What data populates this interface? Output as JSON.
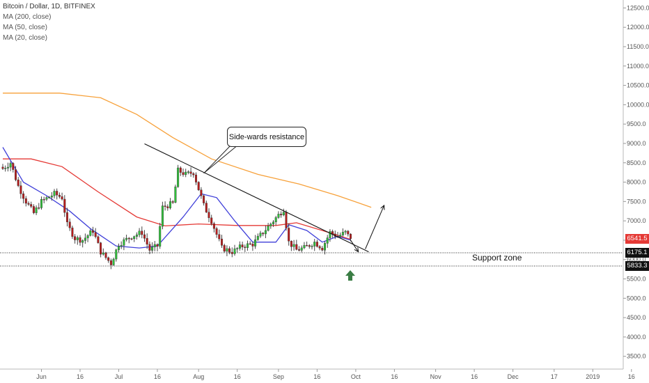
{
  "legend": {
    "symbol": "Bitcoin / Dollar, 1D, BITFINEX",
    "ma200": "MA (200, close)",
    "ma50": "MA (50, close)",
    "ma20": "MA (20, close)"
  },
  "annotations": {
    "callout": "Side-wards resistance",
    "support_zone": "Support zone"
  },
  "price_tags": {
    "last": "6541.5",
    "support_top": "6175.1",
    "support_bottom": "5833.3"
  },
  "colors": {
    "up": "#2fbf3a",
    "down": "#b71c1c",
    "ma200": "#f7a13a",
    "ma50": "#e53935",
    "ma20": "#3f3fd9",
    "last_tag": "#e53935",
    "support_tag": "#111111",
    "arrow": "#3a7d44"
  },
  "chart_data": {
    "type": "candlestick",
    "ylim": [
      3300,
      12500
    ],
    "y_ticks": [
      3500,
      4000,
      4500,
      5000,
      5500,
      6000,
      6500,
      7000,
      7500,
      8000,
      8500,
      9000,
      9500,
      10000,
      10500,
      11000,
      11500,
      12000,
      12500
    ],
    "y_tick_labels": [
      "3500.0",
      "4000.0",
      "4500.0",
      "5000.0",
      "5500.0",
      "6000.0",
      "6500.0",
      "7000.0",
      "7500.0",
      "8000.0",
      "8500.0",
      "9000.0",
      "9500.0",
      "10000.0",
      "10500.0",
      "11000.0",
      "11500.0",
      "12000.0",
      "12500.0"
    ],
    "x_start": "2018-05-17",
    "x_ticks": [
      {
        "date": "2018-06-01",
        "label": "Jun"
      },
      {
        "date": "2018-06-16",
        "label": "16"
      },
      {
        "date": "2018-07-01",
        "label": "Jul"
      },
      {
        "date": "2018-07-16",
        "label": "16"
      },
      {
        "date": "2018-08-01",
        "label": "Aug"
      },
      {
        "date": "2018-08-16",
        "label": "16"
      },
      {
        "date": "2018-09-01",
        "label": "Sep"
      },
      {
        "date": "2018-09-16",
        "label": "16"
      },
      {
        "date": "2018-10-01",
        "label": "Oct"
      },
      {
        "date": "2018-10-16",
        "label": "16"
      },
      {
        "date": "2018-11-01",
        "label": "Nov"
      },
      {
        "date": "2018-11-16",
        "label": "16"
      },
      {
        "date": "2018-12-01",
        "label": "Dec"
      },
      {
        "date": "2018-12-17",
        "label": "17"
      },
      {
        "date": "2019-01-01",
        "label": "2019"
      },
      {
        "date": "2019-01-16",
        "label": "16"
      }
    ],
    "price_anchors": [
      {
        "date": "2018-05-17",
        "close": 8350
      },
      {
        "date": "2018-05-20",
        "close": 8500
      },
      {
        "date": "2018-05-23",
        "close": 7900
      },
      {
        "date": "2018-05-26",
        "close": 7500
      },
      {
        "date": "2018-05-29",
        "close": 7200
      },
      {
        "date": "2018-06-01",
        "close": 7500
      },
      {
        "date": "2018-06-06",
        "close": 7700
      },
      {
        "date": "2018-06-09",
        "close": 7600
      },
      {
        "date": "2018-06-11",
        "close": 6900
      },
      {
        "date": "2018-06-14",
        "close": 6550
      },
      {
        "date": "2018-06-17",
        "close": 6500
      },
      {
        "date": "2018-06-21",
        "close": 6750
      },
      {
        "date": "2018-06-24",
        "close": 6200
      },
      {
        "date": "2018-06-28",
        "close": 5900
      },
      {
        "date": "2018-07-01",
        "close": 6400
      },
      {
        "date": "2018-07-06",
        "close": 6600
      },
      {
        "date": "2018-07-10",
        "close": 6700
      },
      {
        "date": "2018-07-13",
        "close": 6250
      },
      {
        "date": "2018-07-16",
        "close": 6350
      },
      {
        "date": "2018-07-18",
        "close": 7350
      },
      {
        "date": "2018-07-22",
        "close": 7450
      },
      {
        "date": "2018-07-24",
        "close": 8300
      },
      {
        "date": "2018-07-27",
        "close": 8200
      },
      {
        "date": "2018-07-30",
        "close": 8250
      },
      {
        "date": "2018-08-03",
        "close": 7400
      },
      {
        "date": "2018-08-06",
        "close": 7000
      },
      {
        "date": "2018-08-10",
        "close": 6300
      },
      {
        "date": "2018-08-14",
        "close": 6200
      },
      {
        "date": "2018-08-18",
        "close": 6350
      },
      {
        "date": "2018-08-22",
        "close": 6400
      },
      {
        "date": "2018-08-26",
        "close": 6700
      },
      {
        "date": "2018-08-30",
        "close": 7000
      },
      {
        "date": "2018-09-03",
        "close": 7300
      },
      {
        "date": "2018-09-05",
        "close": 6450
      },
      {
        "date": "2018-09-08",
        "close": 6250
      },
      {
        "date": "2018-09-11",
        "close": 6300
      },
      {
        "date": "2018-09-15",
        "close": 6450
      },
      {
        "date": "2018-09-18",
        "close": 6300
      },
      {
        "date": "2018-09-21",
        "close": 6700
      },
      {
        "date": "2018-09-24",
        "close": 6600
      },
      {
        "date": "2018-09-27",
        "close": 6700
      },
      {
        "date": "2018-09-29",
        "close": 6541.5
      }
    ],
    "series": [
      {
        "name": "MA (200, close)",
        "points": [
          [
            "2018-05-17",
            10300
          ],
          [
            "2018-06-08",
            10300
          ],
          [
            "2018-06-24",
            10180
          ],
          [
            "2018-07-08",
            9750
          ],
          [
            "2018-07-22",
            9150
          ],
          [
            "2018-08-06",
            8600
          ],
          [
            "2018-08-24",
            8200
          ],
          [
            "2018-09-09",
            7950
          ],
          [
            "2018-09-24",
            7650
          ],
          [
            "2018-10-07",
            7350
          ]
        ]
      },
      {
        "name": "MA (50, close)",
        "points": [
          [
            "2018-05-17",
            8600
          ],
          [
            "2018-05-28",
            8600
          ],
          [
            "2018-06-09",
            8400
          ],
          [
            "2018-06-23",
            7750
          ],
          [
            "2018-07-08",
            7100
          ],
          [
            "2018-07-19",
            6870
          ],
          [
            "2018-08-01",
            6920
          ],
          [
            "2018-08-16",
            6880
          ],
          [
            "2018-08-31",
            6880
          ],
          [
            "2018-09-08",
            6950
          ],
          [
            "2018-09-18",
            6750
          ],
          [
            "2018-09-29",
            6520
          ]
        ]
      },
      {
        "name": "MA (20, close)",
        "points": [
          [
            "2018-05-17",
            8900
          ],
          [
            "2018-05-25",
            8000
          ],
          [
            "2018-06-03",
            7650
          ],
          [
            "2018-06-12",
            7250
          ],
          [
            "2018-06-20",
            6800
          ],
          [
            "2018-06-30",
            6350
          ],
          [
            "2018-07-09",
            6300
          ],
          [
            "2018-07-16",
            6350
          ],
          [
            "2018-07-26",
            7100
          ],
          [
            "2018-08-02",
            7700
          ],
          [
            "2018-08-08",
            7600
          ],
          [
            "2018-08-15",
            7000
          ],
          [
            "2018-08-22",
            6450
          ],
          [
            "2018-08-31",
            6450
          ],
          [
            "2018-09-05",
            6900
          ],
          [
            "2018-09-12",
            6750
          ],
          [
            "2018-09-18",
            6450
          ],
          [
            "2018-09-24",
            6600
          ],
          [
            "2018-09-29",
            6500
          ]
        ]
      }
    ],
    "resistance_line": [
      [
        "2018-07-11",
        8990
      ],
      [
        "2018-10-06",
        6200
      ]
    ],
    "callout_pointer": [
      "2018-08-03",
      8230
    ],
    "support_zone": [
      5833.3,
      6175.1
    ],
    "projection_path": [
      [
        "2018-09-29",
        6500
      ],
      [
        "2018-10-02",
        6200
      ],
      [
        "2018-10-12",
        7400
      ]
    ]
  }
}
